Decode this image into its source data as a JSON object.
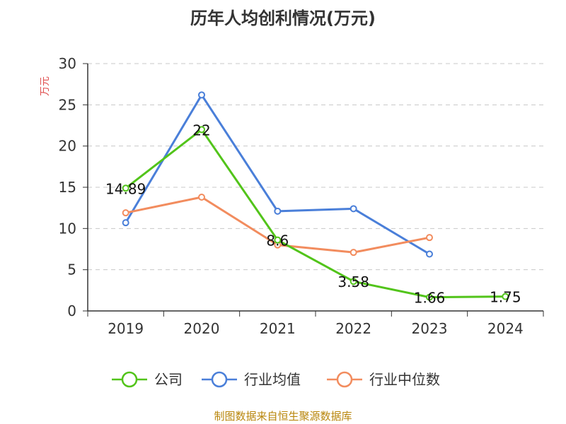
{
  "chart_data": {
    "type": "line",
    "title": "历年人均创利情况(万元)",
    "ylabel": "万元",
    "xlabel": "",
    "categories": [
      "2019",
      "2020",
      "2021",
      "2022",
      "2023",
      "2024"
    ],
    "ylim": [
      0,
      30
    ],
    "yticks": [
      0,
      5,
      10,
      15,
      20,
      25,
      30
    ],
    "grid": true,
    "legend_position": "bottom",
    "series": [
      {
        "name": "公司",
        "color": "#52c41a",
        "values": [
          14.89,
          22,
          8.6,
          3.58,
          1.66,
          1.75
        ],
        "labels": [
          "14.89",
          "22",
          "8.6",
          "3.58",
          "1.66",
          "1.75"
        ]
      },
      {
        "name": "行业均值",
        "color": "#4a7fd9",
        "values": [
          10.7,
          26.2,
          12.1,
          12.4,
          6.9,
          null
        ]
      },
      {
        "name": "行业中位数",
        "color": "#f28c5e",
        "values": [
          11.9,
          13.8,
          8.0,
          7.1,
          8.9,
          null
        ]
      }
    ]
  },
  "source_note": "制图数据来自恒生聚源数据库",
  "colors": {
    "axis": "#333333",
    "grid": "#c8c8c8",
    "ylabel": "#e05050",
    "source": "#b8860b"
  }
}
